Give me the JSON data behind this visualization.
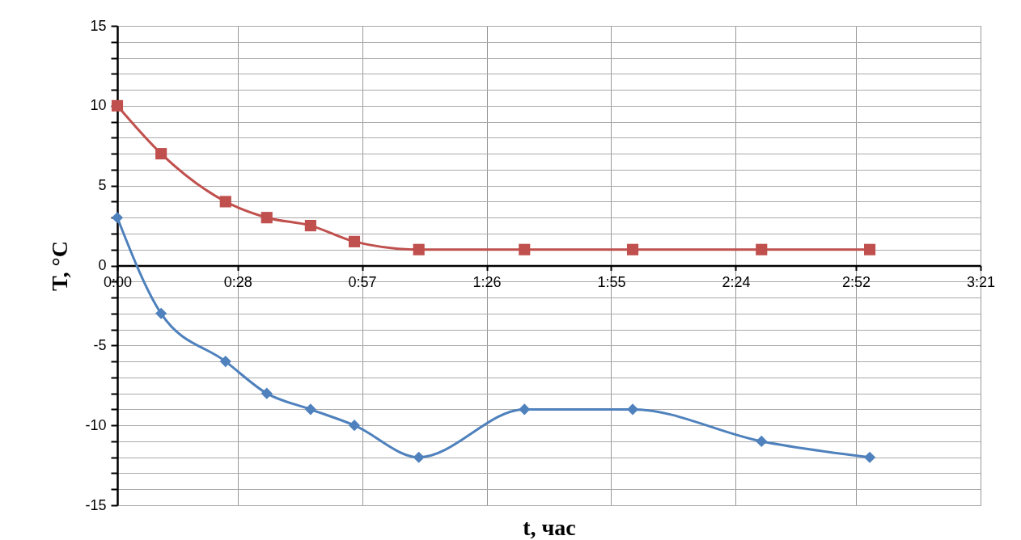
{
  "chart_data": {
    "type": "line",
    "xlabel": "t, час",
    "ylabel": "T, °C",
    "xlim": [
      0,
      3.35
    ],
    "ylim": [
      -15,
      15
    ],
    "xticks": [
      {
        "value": 0,
        "label": "0:00"
      },
      {
        "value": 0.4667,
        "label": "0:28"
      },
      {
        "value": 0.95,
        "label": "0:57"
      },
      {
        "value": 1.4333,
        "label": "1:26"
      },
      {
        "value": 1.9167,
        "label": "1:55"
      },
      {
        "value": 2.4,
        "label": "2:24"
      },
      {
        "value": 2.8667,
        "label": "2:52"
      },
      {
        "value": 3.35,
        "label": "3:21"
      }
    ],
    "yticks": [
      -15,
      {
        "value": -14,
        "label": null
      },
      {
        "value": -13,
        "label": null
      },
      {
        "value": -12,
        "label": null
      },
      {
        "value": -11,
        "label": null
      },
      -10,
      {
        "value": -9,
        "label": null
      },
      {
        "value": -8,
        "label": null
      },
      {
        "value": -7,
        "label": null
      },
      {
        "value": -6,
        "label": null
      },
      -5,
      {
        "value": -4,
        "label": null
      },
      {
        "value": -3,
        "label": null
      },
      {
        "value": -2,
        "label": null
      },
      {
        "value": -1,
        "label": null
      },
      0,
      {
        "value": 1,
        "label": null
      },
      {
        "value": 2,
        "label": null
      },
      {
        "value": 3,
        "label": null
      },
      {
        "value": 4,
        "label": null
      },
      5,
      {
        "value": 6,
        "label": null
      },
      {
        "value": 7,
        "label": null
      },
      {
        "value": 8,
        "label": null
      },
      {
        "value": 9,
        "label": null
      },
      10,
      {
        "value": 11,
        "label": null
      },
      {
        "value": 12,
        "label": null
      },
      {
        "value": 13,
        "label": null
      },
      {
        "value": 14,
        "label": null
      },
      15
    ],
    "x": [
      0,
      0.17,
      0.42,
      0.58,
      0.75,
      0.92,
      1.17,
      1.58,
      2.0,
      2.5,
      2.92
    ],
    "series": [
      {
        "color": "#c0504d",
        "marker": "square",
        "values": [
          10,
          7,
          4,
          3,
          2.5,
          1.5,
          1,
          1,
          1,
          1,
          1
        ]
      },
      {
        "color": "#4f81bd",
        "marker": "diamond",
        "values": [
          3,
          -3,
          -6,
          -8,
          -9,
          -10,
          -12,
          -9,
          -9,
          -11,
          -12
        ]
      }
    ],
    "grid": true,
    "line_style": "solid"
  }
}
